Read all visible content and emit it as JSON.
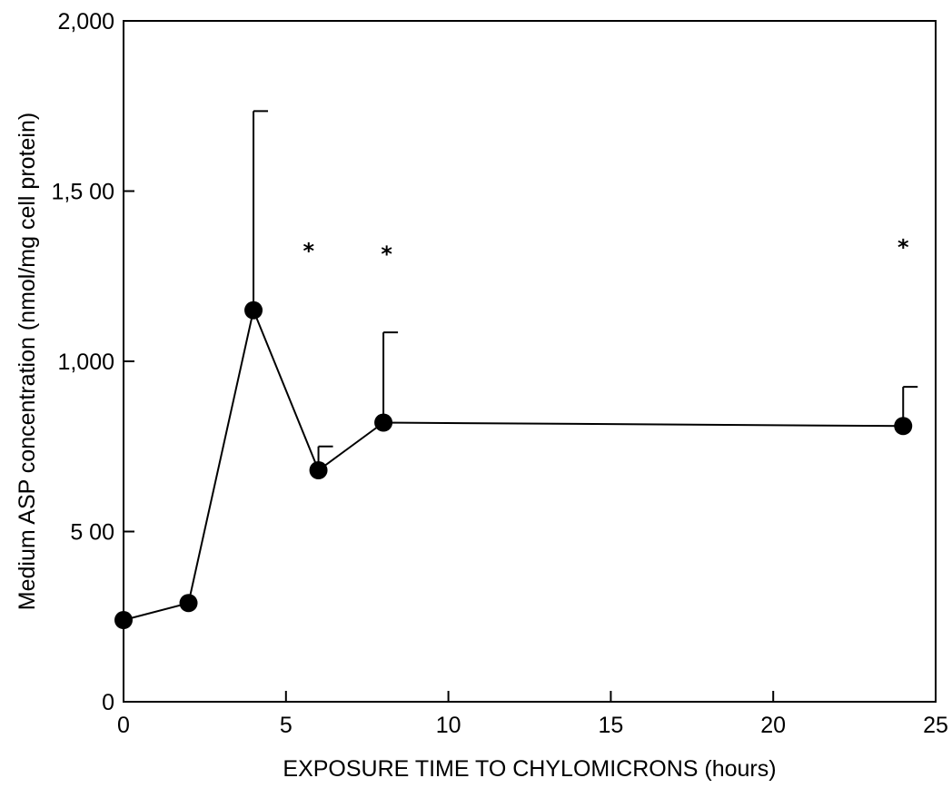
{
  "chart_data": {
    "type": "line",
    "title": "",
    "xlabel": "EXPOSURE TIME TO CHYLOMICRONS (hours)",
    "ylabel": "Medium ASP concentration (nmol/mg cell protein)",
    "xlim": [
      0,
      25
    ],
    "ylim": [
      0,
      2000
    ],
    "xticks": [
      0,
      5,
      10,
      15,
      20,
      25
    ],
    "xtick_labels": [
      "0",
      "5",
      "10",
      "15",
      "20",
      "25"
    ],
    "yticks": [
      0,
      500,
      1000,
      1500,
      2000
    ],
    "ytick_labels": [
      "0",
      "5 00",
      "1,000",
      "1,5 00",
      "2,000"
    ],
    "grid": false,
    "series": [
      {
        "x": [
          0,
          2,
          4,
          6,
          8,
          24
        ],
        "y": [
          240,
          290,
          1150,
          680,
          820,
          810
        ],
        "error_upper": [
          null,
          null,
          1735,
          750,
          1085,
          925
        ]
      }
    ],
    "annotations": [
      {
        "text": "*",
        "x": 5.7,
        "y": 1330
      },
      {
        "text": "*",
        "x": 8.1,
        "y": 1320
      },
      {
        "text": "*",
        "x": 24.0,
        "y": 1340
      }
    ]
  }
}
